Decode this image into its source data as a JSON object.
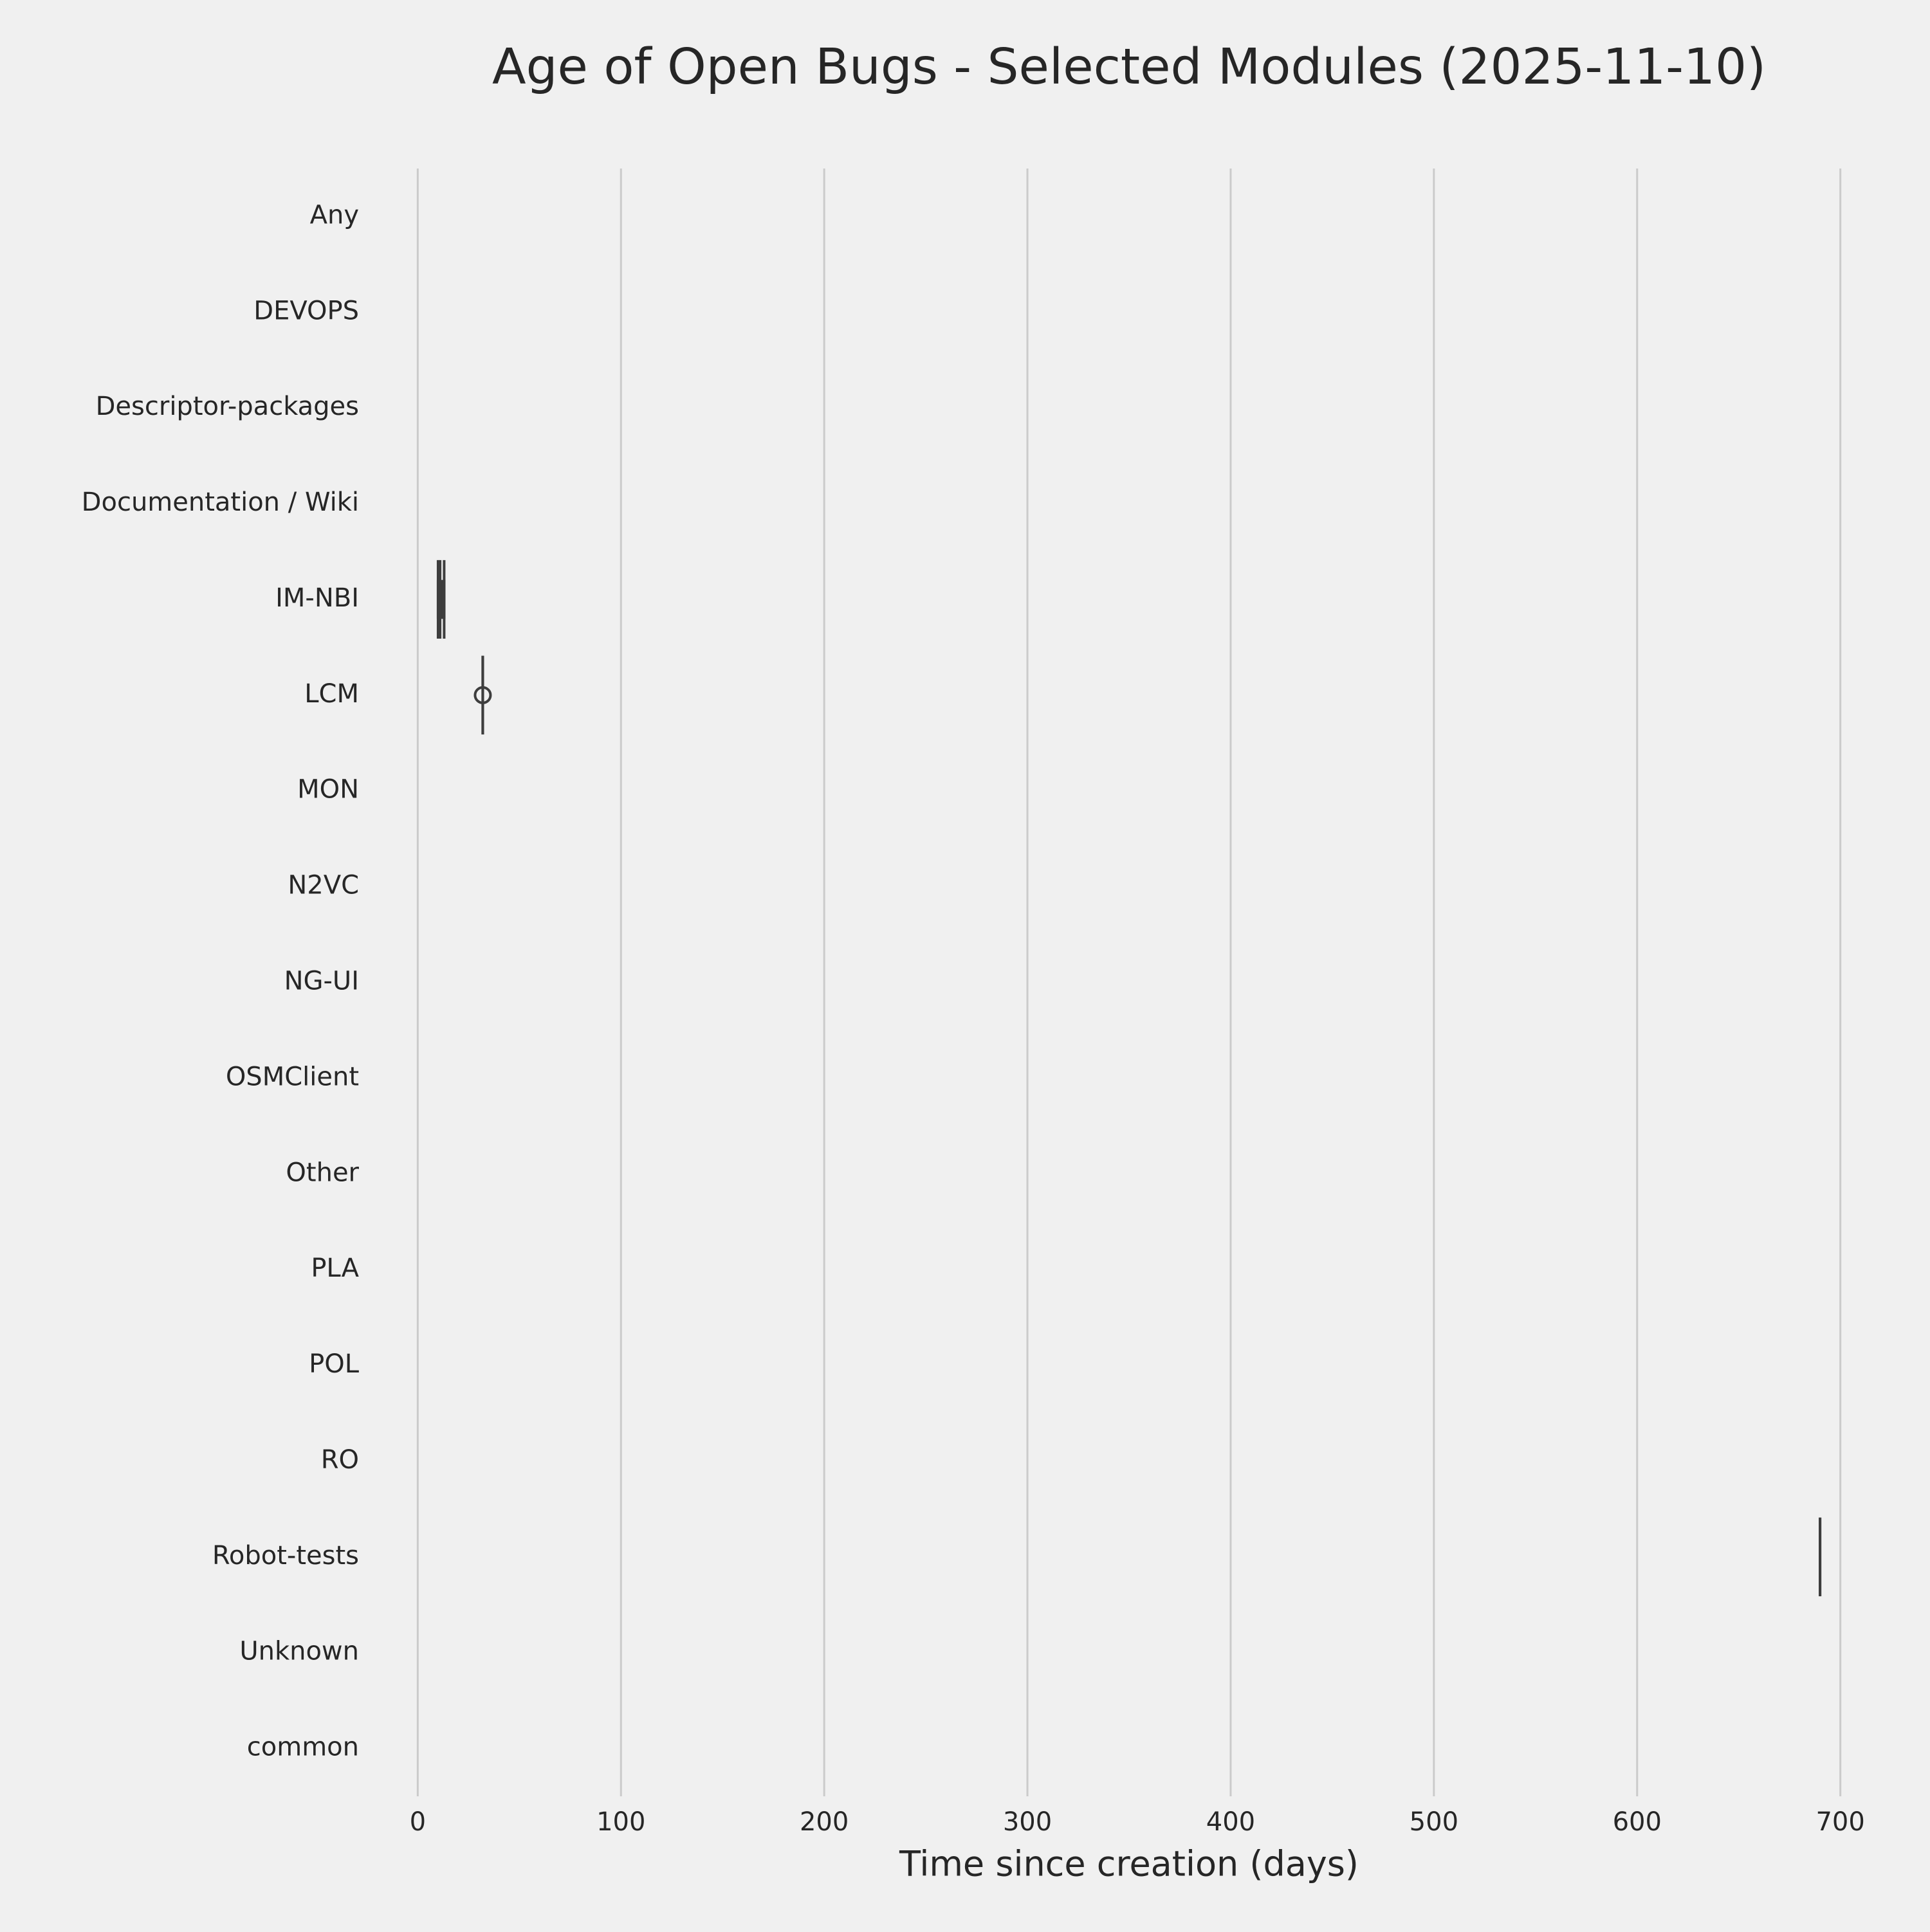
{
  "chart_data": {
    "type": "boxplot",
    "title": "Age of Open Bugs - Selected Modules (2025-11-10)",
    "x_label": "Time since creation (days)",
    "categories": [
      "Any",
      "DEVOPS",
      "Descriptor-packages",
      "Documentation / Wiki",
      "IM-NBI",
      "LCM",
      "MON",
      "N2VC",
      "NG-UI",
      "OSMClient",
      "Other",
      "PLA",
      "POL",
      "RO",
      "Robot-tests",
      "Unknown",
      "common"
    ],
    "boxes": [
      null,
      null,
      null,
      null,
      {
        "min": 10,
        "q1": 10,
        "median": 11,
        "q3": 13,
        "max": 13,
        "fliers": []
      },
      {
        "min": 32,
        "q1": 32,
        "median": 32,
        "q3": 32,
        "max": 32,
        "fliers": [
          32
        ]
      },
      null,
      null,
      null,
      null,
      null,
      null,
      null,
      null,
      {
        "min": 690,
        "q1": 690,
        "median": 690,
        "q3": 690,
        "max": 690,
        "fliers": []
      },
      null,
      null
    ],
    "color": "#3d3d3d",
    "xlim": [
      -21,
      721
    ],
    "xticks": [
      0,
      100,
      200,
      300,
      400,
      500,
      600,
      700
    ],
    "grid": true
  }
}
